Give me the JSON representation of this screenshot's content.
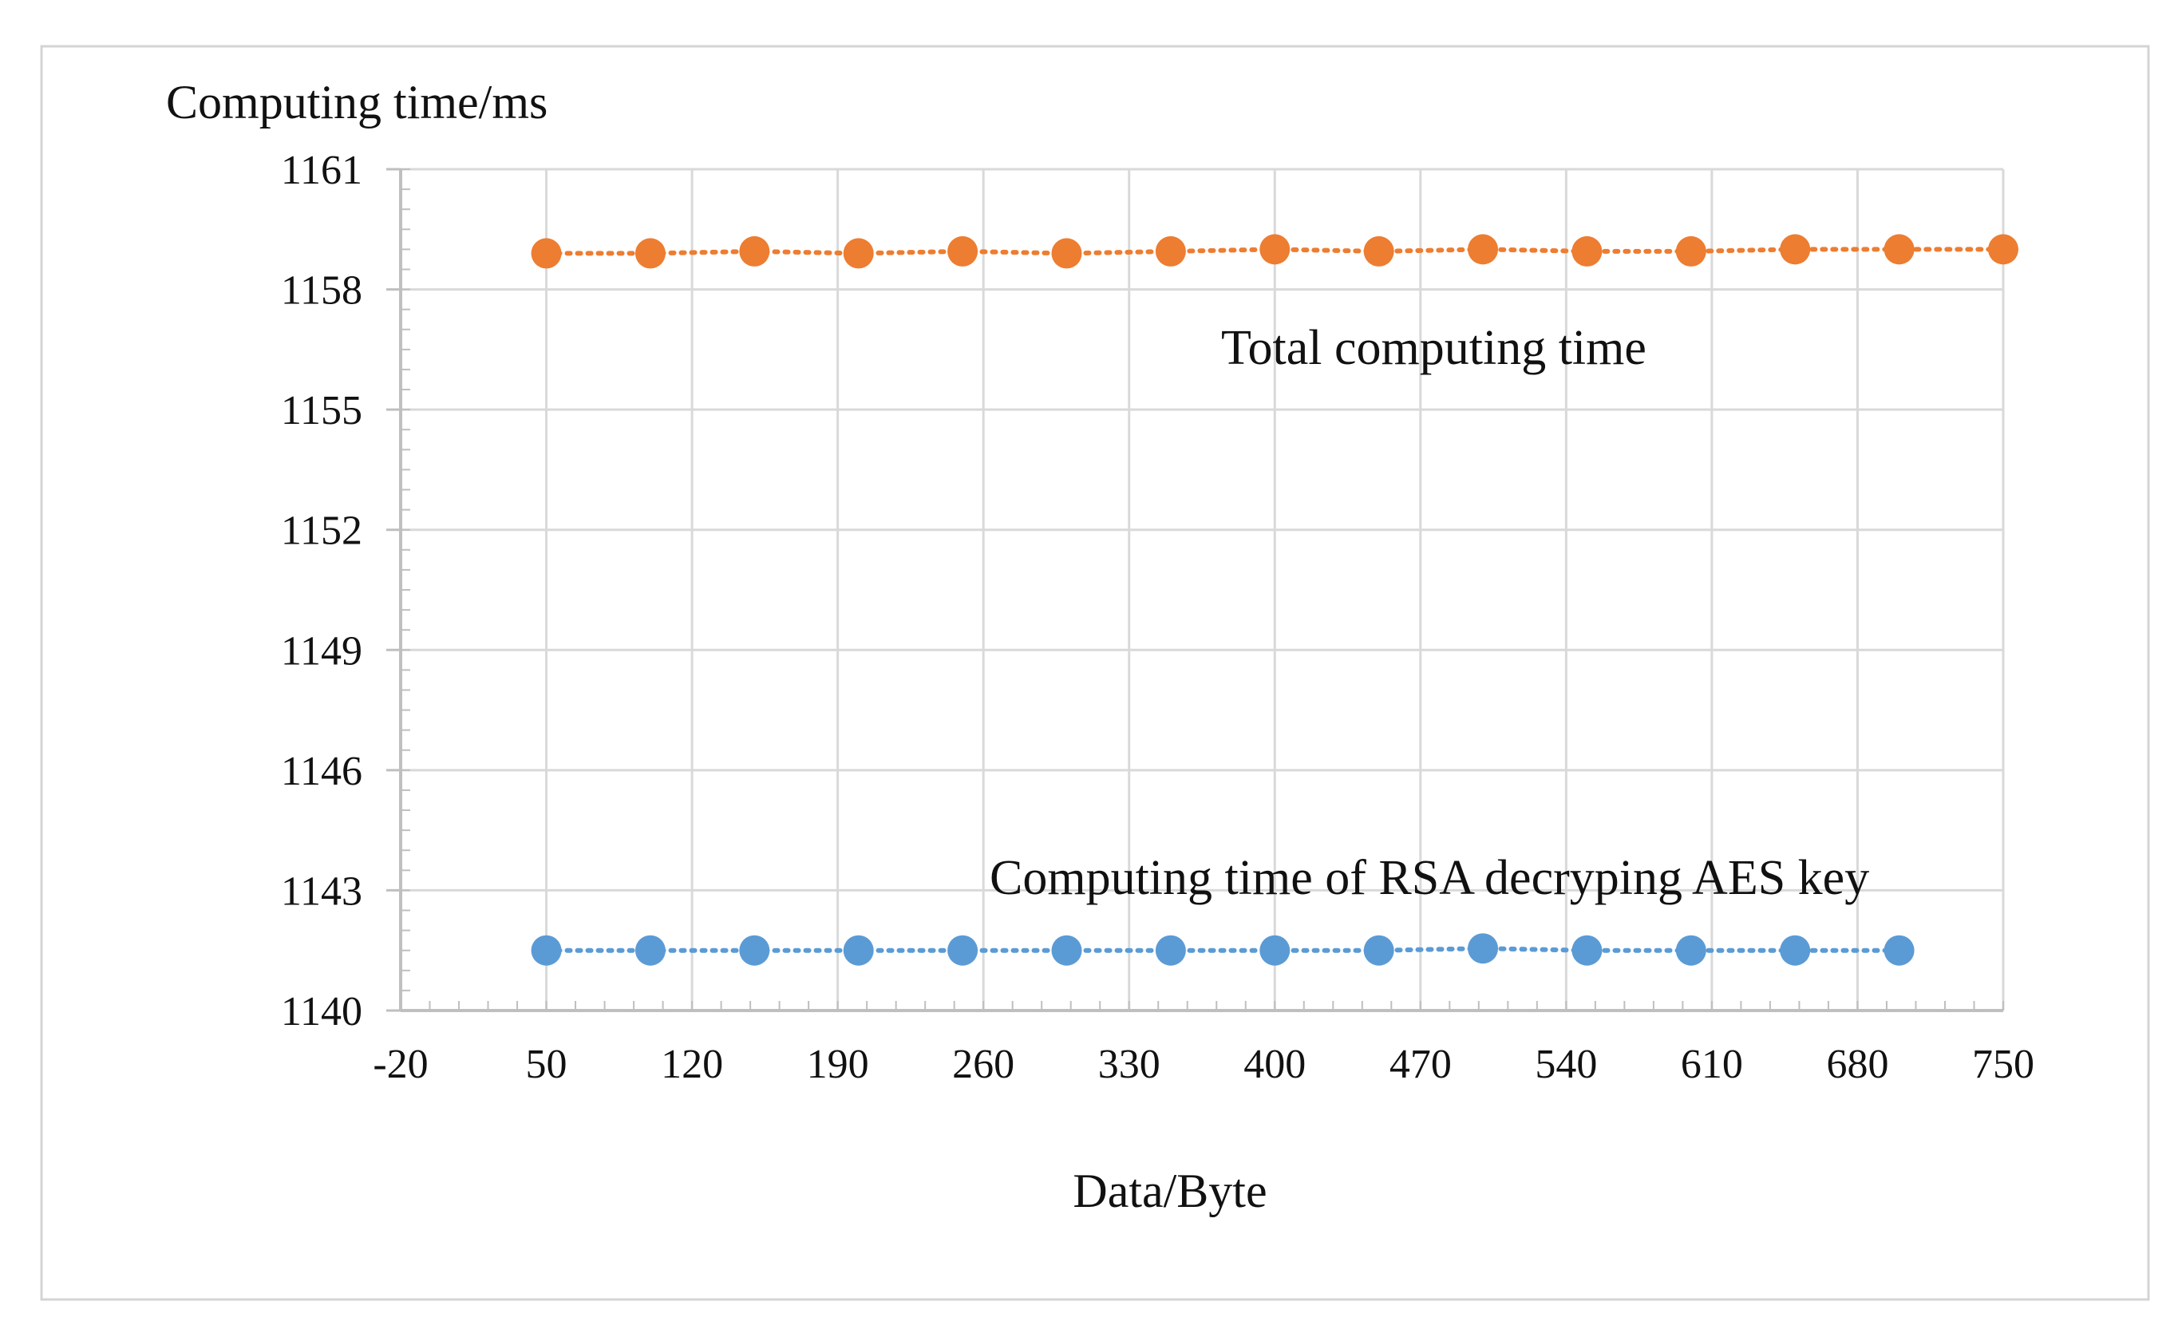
{
  "chart_data": {
    "type": "scatter",
    "title": "",
    "ylabel": "Computing time/ms",
    "xlabel": "Data/Byte",
    "xlim": [
      -20,
      750
    ],
    "ylim": [
      1140,
      1161
    ],
    "xticks": [
      "-20",
      "50",
      "120",
      "190",
      "260",
      "330",
      "400",
      "470",
      "540",
      "610",
      "680",
      "750"
    ],
    "yticks": [
      "1140",
      "1143",
      "1146",
      "1149",
      "1152",
      "1155",
      "1158",
      "1161"
    ],
    "grid": true,
    "legend": "none",
    "series": [
      {
        "label": "Total computing time",
        "color": "#ED7D31",
        "line_style": "dotted",
        "x": [
          50,
          100,
          150,
          200,
          250,
          300,
          350,
          400,
          450,
          500,
          550,
          600,
          650,
          700,
          750
        ],
        "y": [
          1158.9,
          1158.9,
          1158.95,
          1158.9,
          1158.95,
          1158.9,
          1158.95,
          1159.0,
          1158.95,
          1159.0,
          1158.95,
          1158.95,
          1159.0,
          1159.0,
          1159.0
        ]
      },
      {
        "label": "Computing time of RSA decryping AES key",
        "color": "#5B9BD5",
        "line_style": "dotted",
        "x": [
          50,
          100,
          150,
          200,
          250,
          300,
          350,
          400,
          450,
          500,
          550,
          600,
          650,
          700
        ],
        "y": [
          1141.5,
          1141.5,
          1141.5,
          1141.5,
          1141.5,
          1141.5,
          1141.5,
          1141.5,
          1141.5,
          1141.55,
          1141.5,
          1141.5,
          1141.5,
          1141.5
        ]
      }
    ]
  }
}
